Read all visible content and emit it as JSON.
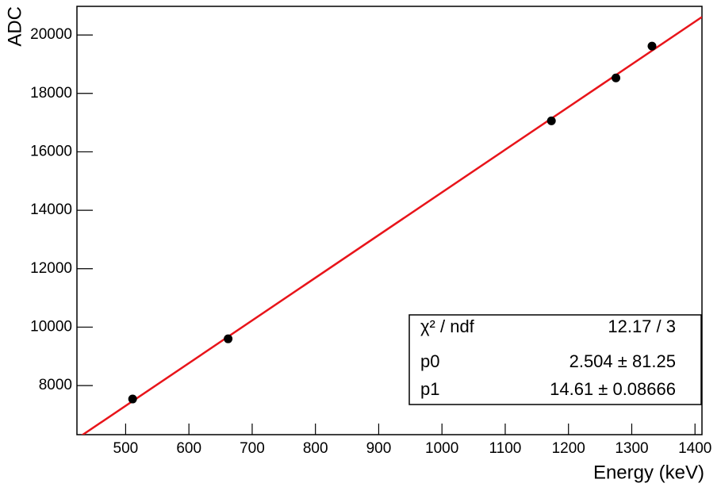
{
  "chart_data": {
    "type": "scatter",
    "x_label": "Energy (keV)",
    "y_label": "ADC",
    "series": [
      {
        "name": "data",
        "color": "#000000",
        "x": [
          511,
          662,
          1173,
          1275,
          1332
        ],
        "values": [
          7540,
          9600,
          17060,
          18530,
          19620
        ]
      }
    ],
    "fit": {
      "p0": 2.504,
      "p1": 14.61,
      "color": "#e8141a"
    },
    "stats": [
      [
        "χ² / ndf",
        "12.17 / 3"
      ],
      [
        "p0",
        "2.504 ± 81.25"
      ],
      [
        "p1",
        "14.61 ± 0.08666"
      ]
    ],
    "xlim": [
      423,
      1411
    ],
    "ylim": [
      6320,
      20980
    ],
    "xticks": [
      500,
      600,
      700,
      800,
      900,
      1000,
      1100,
      1200,
      1300,
      1400
    ],
    "yticks": [
      8000,
      10000,
      12000,
      14000,
      16000,
      18000,
      20000
    ]
  }
}
